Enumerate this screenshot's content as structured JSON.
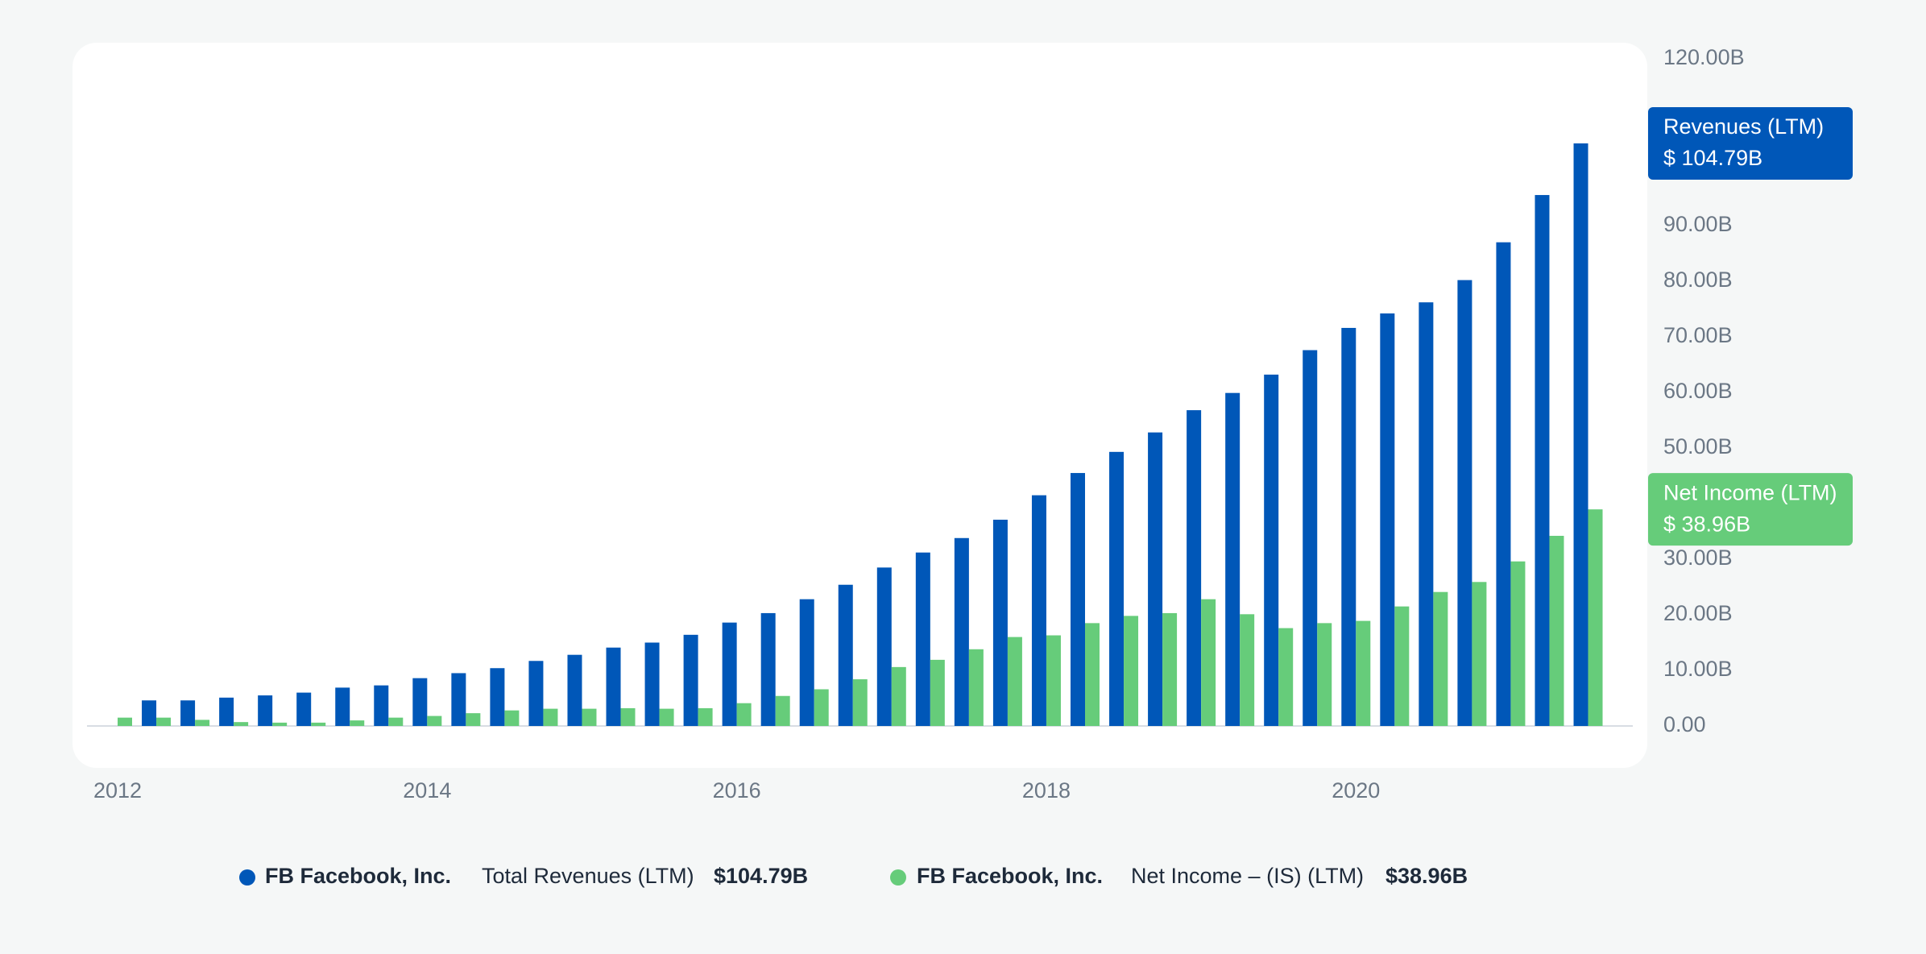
{
  "chart_data": {
    "type": "bar",
    "categories": [
      "2012",
      null,
      null,
      null,
      null,
      null,
      null,
      null,
      "2014",
      null,
      null,
      null,
      null,
      null,
      null,
      null,
      "2016",
      null,
      null,
      null,
      null,
      null,
      null,
      null,
      "2018",
      null,
      null,
      null,
      null,
      null,
      null,
      null,
      "2020",
      null,
      null,
      null,
      null,
      null,
      null
    ],
    "series": [
      {
        "name": "Total Revenues (LTM)",
        "company": "FB Facebook, Inc.",
        "value_label": "$104.79B",
        "tag_title": "Revenues (LTM)",
        "tag_value": "$ 104.79B",
        "color": "#0057b8",
        "values": [
          null,
          4.6,
          4.6,
          5.1,
          5.5,
          6.0,
          6.9,
          7.3,
          8.6,
          9.5,
          10.4,
          11.7,
          12.8,
          14.1,
          15.0,
          16.4,
          18.6,
          20.3,
          22.8,
          25.4,
          28.5,
          31.2,
          33.8,
          37.1,
          41.5,
          45.5,
          49.3,
          52.8,
          56.8,
          59.9,
          63.2,
          67.6,
          71.6,
          74.2,
          76.2,
          80.2,
          87.0,
          95.5,
          104.79
        ]
      },
      {
        "name": "Net Income – (IS) (LTM)",
        "company": "FB Facebook, Inc.",
        "value_label": "$38.96B",
        "tag_title": "Net Income (LTM)",
        "tag_value": "$ 38.96B",
        "color": "#66cc7a",
        "values": [
          1.5,
          1.5,
          1.1,
          0.7,
          0.6,
          0.6,
          1.0,
          1.5,
          1.8,
          2.3,
          2.8,
          3.1,
          3.1,
          3.2,
          3.1,
          3.2,
          4.1,
          5.4,
          6.6,
          8.4,
          10.6,
          11.9,
          13.8,
          16.0,
          16.3,
          18.5,
          19.8,
          20.3,
          22.8,
          20.1,
          17.6,
          18.5,
          18.9,
          21.5,
          24.1,
          25.9,
          29.6,
          34.2,
          38.96
        ]
      }
    ],
    "ylim": [
      0,
      120
    ],
    "yticks": [
      {
        "value": 0,
        "label": "0.00"
      },
      {
        "value": 10,
        "label": "10.00B"
      },
      {
        "value": 20,
        "label": "20.00B"
      },
      {
        "value": 30,
        "label": "30.00B"
      },
      {
        "value": 50,
        "label": "50.00B"
      },
      {
        "value": 60,
        "label": "60.00B"
      },
      {
        "value": 70,
        "label": "70.00B"
      },
      {
        "value": 80,
        "label": "80.00B"
      },
      {
        "value": 90,
        "label": "90.00B"
      },
      {
        "value": 120,
        "label": "120.00B"
      }
    ]
  }
}
